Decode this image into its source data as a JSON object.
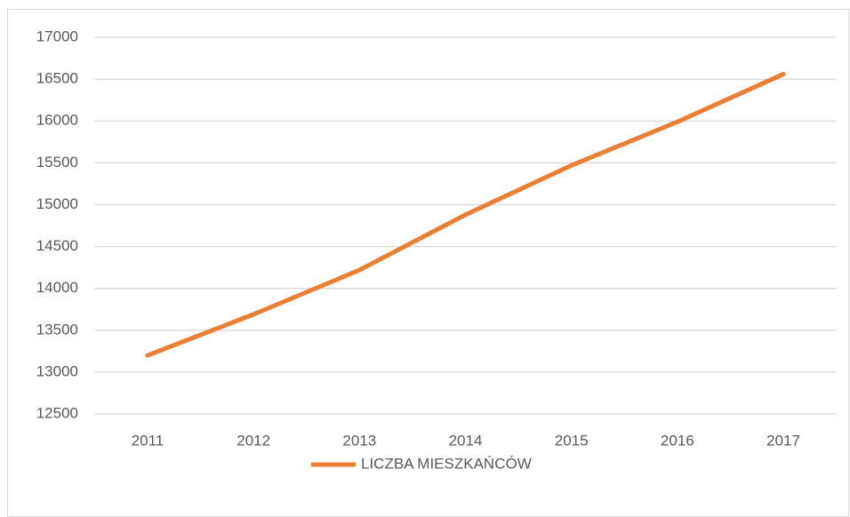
{
  "chart_data": {
    "type": "line",
    "categories": [
      "2011",
      "2012",
      "2013",
      "2014",
      "2015",
      "2016",
      "2017"
    ],
    "series": [
      {
        "name": "LICZBA MIESZKAŃCÓW",
        "color": "#ed7d31",
        "values": [
          13200,
          13690,
          14220,
          14880,
          15470,
          15990,
          16560
        ]
      }
    ],
    "ylim": [
      12500,
      17000
    ],
    "yticks": [
      12500,
      13000,
      13500,
      14000,
      14500,
      15000,
      15500,
      16000,
      16500,
      17000
    ],
    "grid": true,
    "legend": "bottom"
  }
}
